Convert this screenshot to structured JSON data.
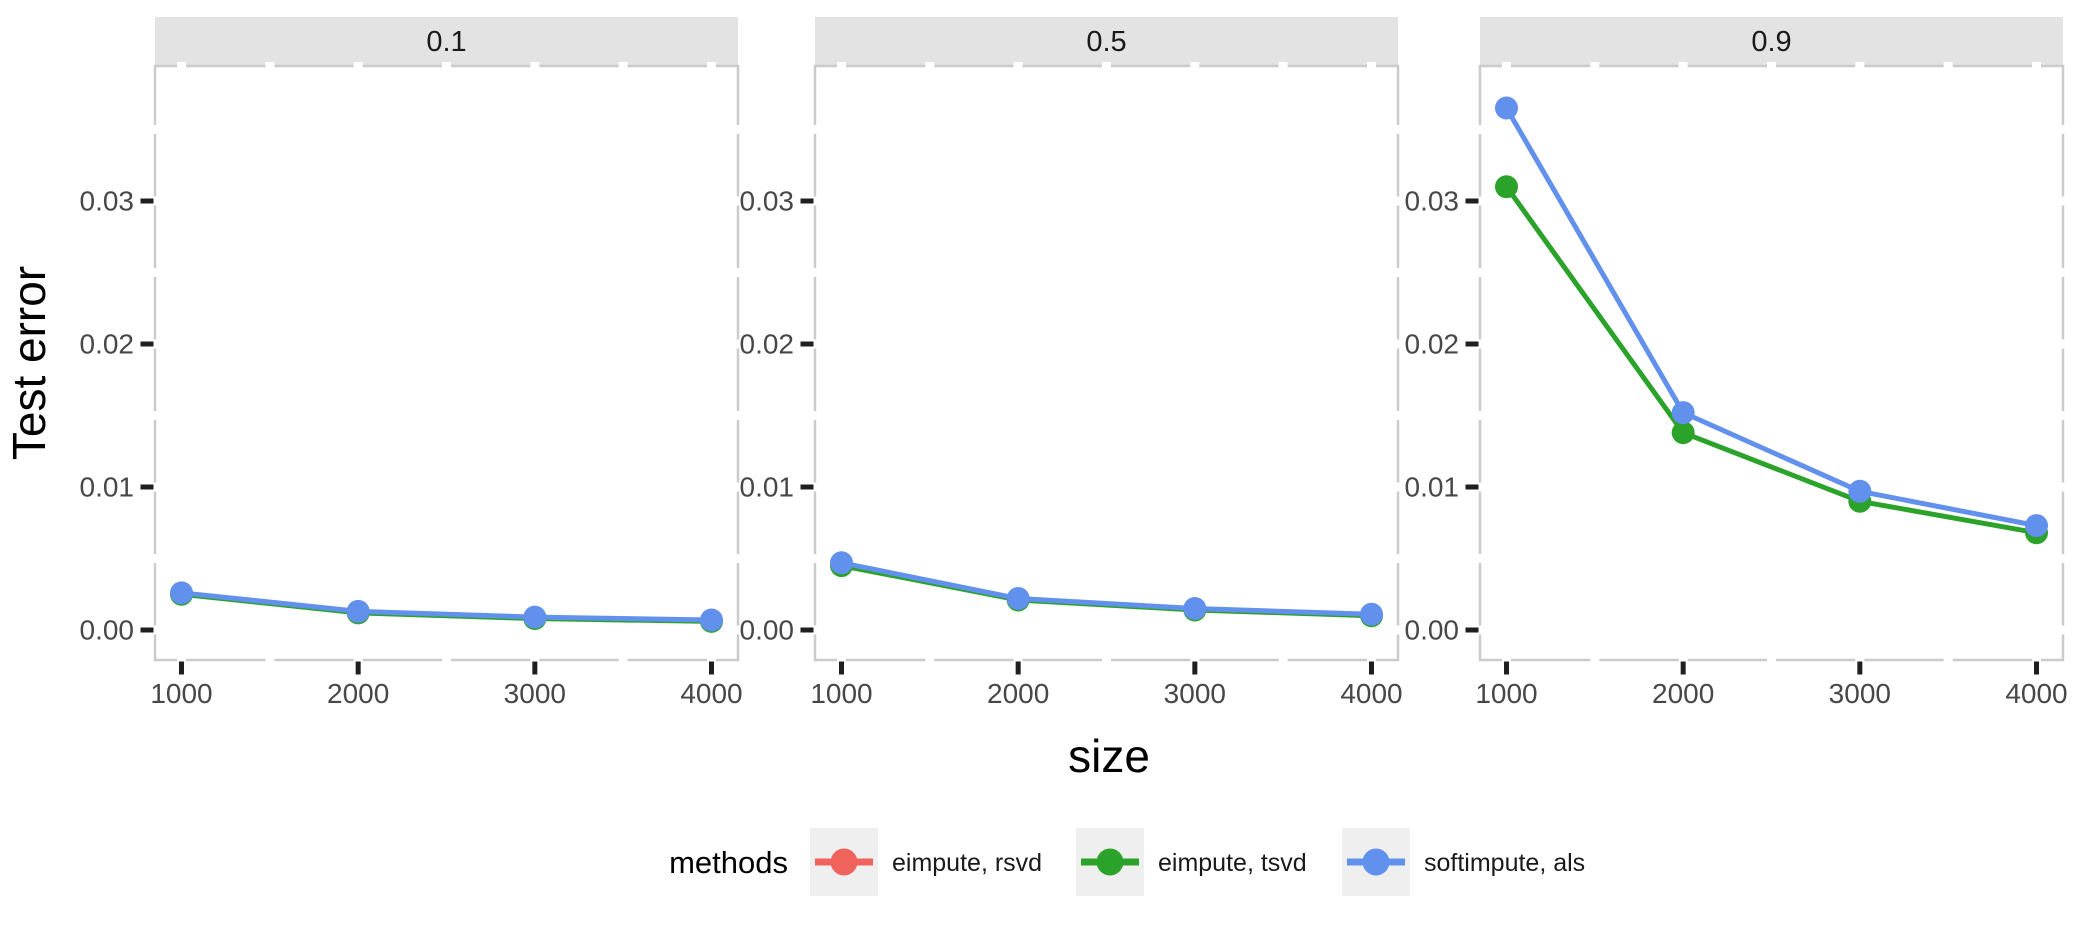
{
  "chart_data": {
    "type": "line",
    "title": "",
    "xlabel": "size",
    "ylabel": "Test error",
    "facet_legend_title": "methods",
    "x": [
      1000,
      2000,
      3000,
      4000
    ],
    "x_tick_labels": [
      "1000",
      "2000",
      "3000",
      "4000"
    ],
    "x_minor_breaks": [
      1500,
      2500,
      3500
    ],
    "y_ticks": [
      0.0,
      0.01,
      0.02,
      0.03
    ],
    "y_tick_labels": [
      "0.00",
      "0.01",
      "0.02",
      "0.03"
    ],
    "y_minor_breaks": [
      0.005,
      0.015,
      0.025,
      0.035
    ],
    "xlim": [
      850,
      4150
    ],
    "ylim": [
      -0.002,
      0.0394
    ],
    "grid": "none",
    "legend_position": "bottom",
    "note": "Curve for 'eimpute, rsvd' is not visibly distinguishable (overplotted); 'eimpute, tsvd' is almost fully hidden under 'softimpute, als' in facets 0.1 and 0.5.",
    "facets": [
      {
        "label": "0.1",
        "series": [
          {
            "name": "eimpute, tsvd",
            "color": "#2BA32B",
            "values": [
              0.0025,
              0.0012,
              0.0008,
              0.0006
            ]
          },
          {
            "name": "softimpute, als",
            "color": "#6191EC",
            "values": [
              0.0026,
              0.0013,
              0.0009,
              0.0007
            ]
          }
        ]
      },
      {
        "label": "0.5",
        "series": [
          {
            "name": "eimpute, tsvd",
            "color": "#2BA32B",
            "values": [
              0.0045,
              0.0021,
              0.0014,
              0.001
            ]
          },
          {
            "name": "softimpute, als",
            "color": "#6191EC",
            "values": [
              0.0047,
              0.0022,
              0.0015,
              0.0011
            ]
          }
        ]
      },
      {
        "label": "0.9",
        "series": [
          {
            "name": "eimpute, tsvd",
            "color": "#2BA32B",
            "values": [
              0.031,
              0.0138,
              0.009,
              0.0068
            ]
          },
          {
            "name": "softimpute, als",
            "color": "#6191EC",
            "values": [
              0.0365,
              0.0152,
              0.0097,
              0.0073
            ]
          }
        ]
      }
    ]
  },
  "legend": {
    "title": "methods",
    "items": [
      {
        "label": "eimpute, rsvd",
        "color": "#F0625C"
      },
      {
        "label": "eimpute, tsvd",
        "color": "#2BA32B"
      },
      {
        "label": "softimpute, als",
        "color": "#6191EC"
      }
    ]
  },
  "colors": {
    "background": "#FFFFFF",
    "strip_background": "#E3E3E3",
    "strip_text": "#1A1A1A",
    "panel_background": "#FFFFFF",
    "panel_border": "#CBCBCB",
    "axis_tick": "#1F1F1F",
    "tick_label": "#474747",
    "axis_title": "#000000",
    "legend_key_background": "#EFEFEF",
    "legend_text": "#1A1A1A"
  }
}
